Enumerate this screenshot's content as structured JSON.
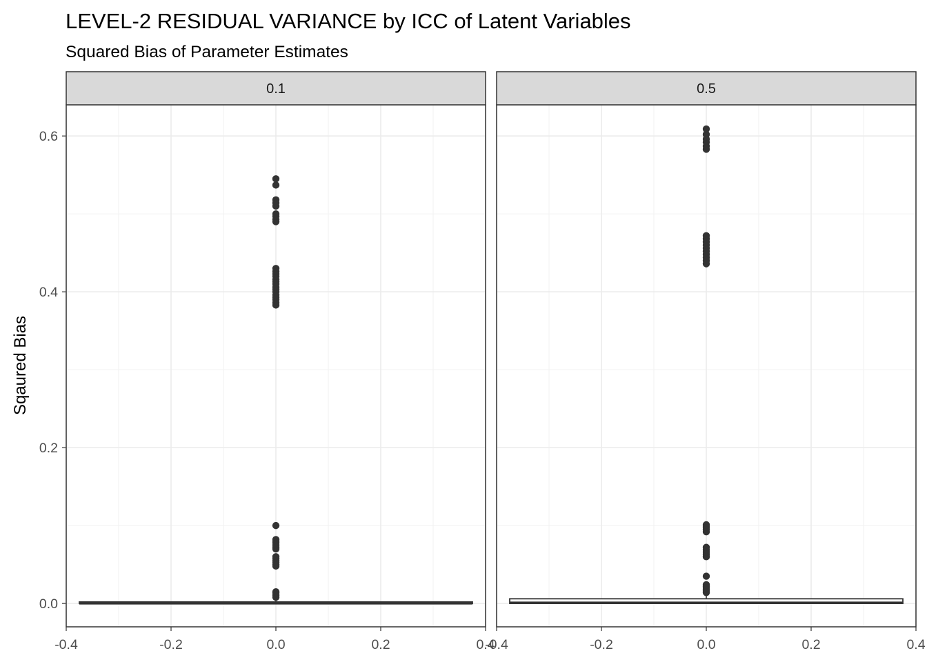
{
  "chart_data": {
    "type": "boxplot",
    "title": "LEVEL-2 RESIDUAL VARIANCE by ICC of Latent Variables",
    "subtitle": "Squared Bias of Parameter Estimates",
    "xlabel": "",
    "ylabel": "Sqaured Bias",
    "xlim": [
      -0.4,
      0.4
    ],
    "ylim": [
      -0.03,
      0.64
    ],
    "x_ticks": [
      -0.4,
      -0.2,
      0.0,
      0.2,
      0.4
    ],
    "x_tick_labels": [
      "-0.4",
      "-0.2",
      "0.0",
      "0.2",
      "0.4"
    ],
    "y_ticks": [
      0.0,
      0.2,
      0.4,
      0.6
    ],
    "y_tick_labels": [
      "0.0",
      "0.2",
      "0.4",
      "0.6"
    ],
    "grid": true,
    "colors": {
      "box_fill": "#ffffff",
      "box_line": "#333333",
      "outlier": "#333333",
      "strip_fill": "#d9d9d9",
      "grid_major": "#ebebeb",
      "grid_minor": "#f2f2f2",
      "panel_border": "#333333"
    },
    "facets": [
      {
        "label": "0.1",
        "box": {
          "x": 0.0,
          "width": 0.75,
          "q1": 0.0,
          "median": 0.0003,
          "q3": 0.002,
          "whisker_low": 0.0,
          "whisker_high": 0.005
        },
        "outliers": [
          0.008,
          0.01,
          0.012,
          0.014,
          0.015,
          0.048,
          0.05,
          0.053,
          0.055,
          0.058,
          0.06,
          0.07,
          0.072,
          0.075,
          0.078,
          0.08,
          0.082,
          0.1,
          0.383,
          0.386,
          0.39,
          0.393,
          0.396,
          0.4,
          0.403,
          0.406,
          0.41,
          0.413,
          0.416,
          0.42,
          0.423,
          0.426,
          0.43,
          0.49,
          0.493,
          0.497,
          0.5,
          0.51,
          0.514,
          0.518,
          0.537,
          0.545
        ]
      },
      {
        "label": "0.5",
        "box": {
          "x": 0.0,
          "width": 0.75,
          "q1": 0.0,
          "median": 0.0008,
          "q3": 0.006,
          "whisker_low": 0.0,
          "whisker_high": 0.013
        },
        "outliers": [
          0.014,
          0.016,
          0.018,
          0.02,
          0.022,
          0.024,
          0.035,
          0.06,
          0.063,
          0.066,
          0.069,
          0.072,
          0.092,
          0.095,
          0.098,
          0.101,
          0.436,
          0.44,
          0.444,
          0.448,
          0.452,
          0.456,
          0.46,
          0.464,
          0.468,
          0.472,
          0.583,
          0.587,
          0.592,
          0.596,
          0.602,
          0.609
        ]
      }
    ]
  }
}
